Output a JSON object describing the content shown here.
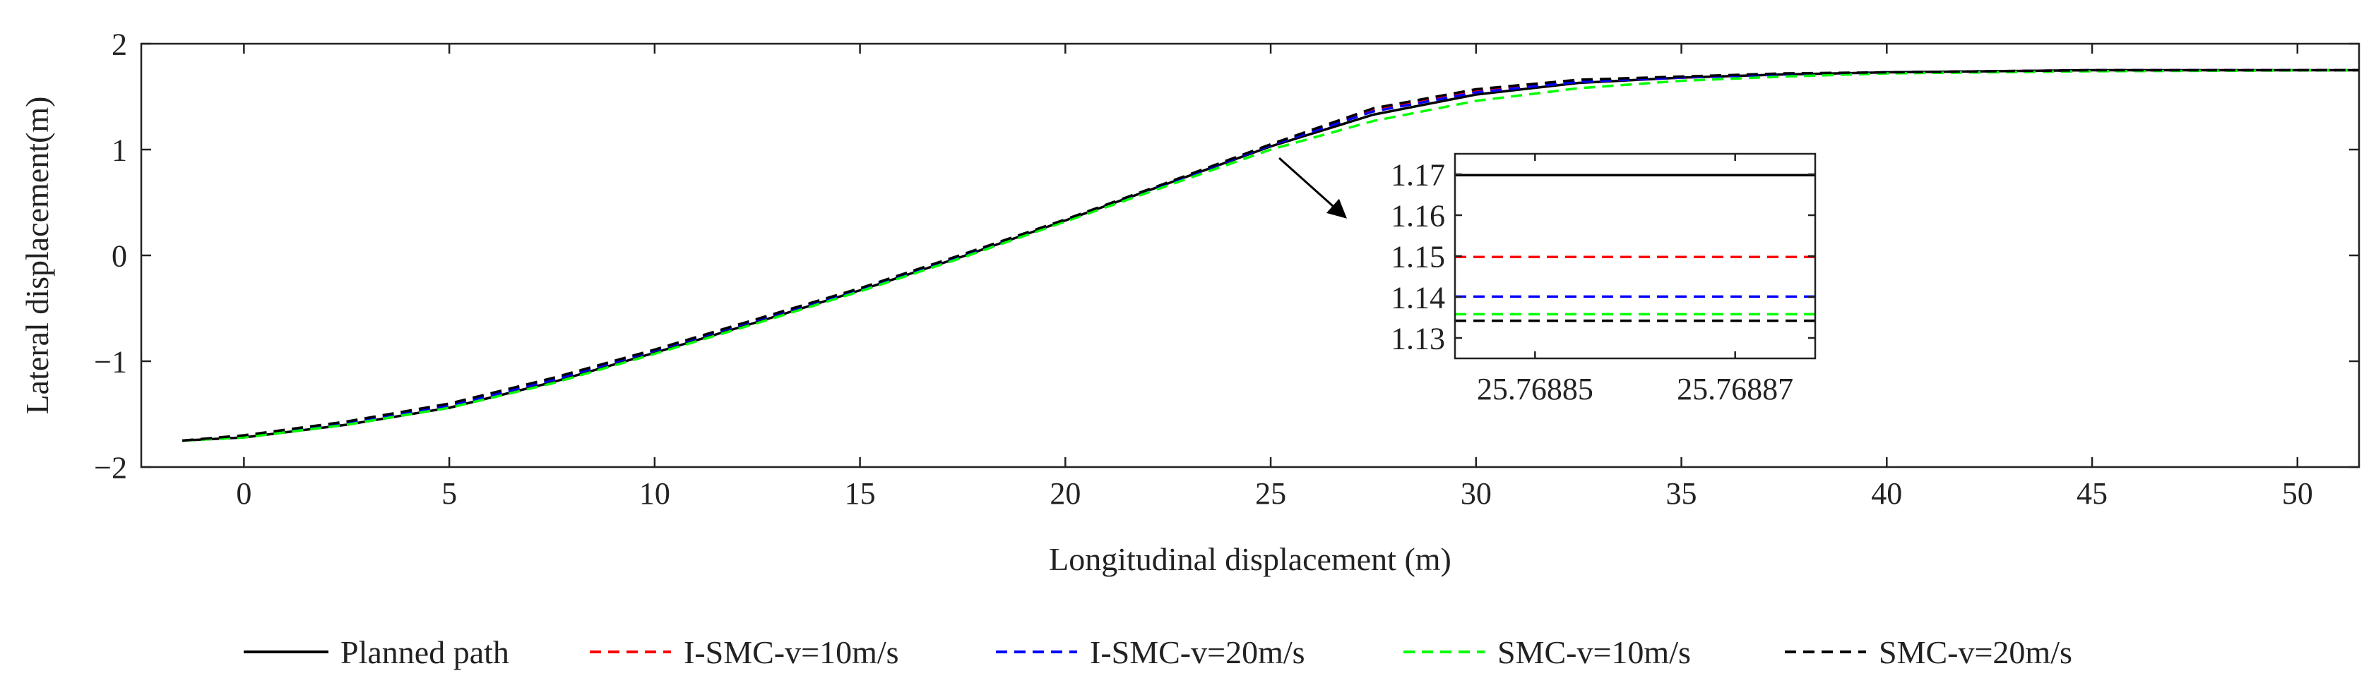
{
  "chart_data": [
    {
      "type": "line",
      "id": "main",
      "title": "",
      "xlabel": "Longitudinal displacement (m)",
      "ylabel": "Lateral displacement(m)",
      "xlim": [
        -2.5,
        51.5
      ],
      "ylim": [
        -2,
        2
      ],
      "xticks": [
        0,
        5,
        10,
        15,
        20,
        25,
        30,
        35,
        40,
        45,
        50
      ],
      "yticks": [
        -2,
        -1,
        0,
        1,
        2
      ],
      "xtick_labels": [
        "0",
        "5",
        "10",
        "15",
        "20",
        "25",
        "30",
        "35",
        "40",
        "45",
        "50"
      ],
      "ytick_labels": [
        "−2",
        "−1",
        "0",
        "1",
        "2"
      ],
      "grid": false,
      "series": [
        {
          "name": "Planned path",
          "color": "#000000",
          "style": "solid",
          "x": [
            -1.5,
            0,
            2.5,
            5,
            7.5,
            10,
            12.5,
            15,
            17.5,
            20,
            22.5,
            25,
            27.5,
            30,
            32.5,
            35,
            37.5,
            40,
            45,
            51.5
          ],
          "y": [
            -1.75,
            -1.72,
            -1.6,
            -1.44,
            -1.2,
            -0.92,
            -0.63,
            -0.33,
            -0.01,
            0.33,
            0.68,
            1.03,
            1.33,
            1.52,
            1.63,
            1.68,
            1.71,
            1.73,
            1.75,
            1.75
          ]
        },
        {
          "name": "I-SMC-v=10m/s",
          "color": "#ff0000",
          "style": "dashed",
          "x": [
            -1.5,
            0,
            2.5,
            5,
            7.5,
            10,
            12.5,
            15,
            17.5,
            20,
            22.5,
            25,
            27.5,
            30,
            32.5,
            35,
            37.5,
            40,
            45,
            51.5
          ],
          "y": [
            -1.75,
            -1.71,
            -1.59,
            -1.42,
            -1.18,
            -0.9,
            -0.61,
            -0.32,
            0.0,
            0.33,
            0.68,
            1.04,
            1.37,
            1.55,
            1.64,
            1.68,
            1.71,
            1.73,
            1.75,
            1.75
          ]
        },
        {
          "name": "I-SMC-v=20m/s",
          "color": "#0000ff",
          "style": "dashed",
          "x": [
            -1.5,
            0,
            2.5,
            5,
            7.5,
            10,
            12.5,
            15,
            17.5,
            20,
            22.5,
            25,
            27.5,
            30,
            32.5,
            35,
            37.5,
            40,
            45,
            51.5
          ],
          "y": [
            -1.75,
            -1.71,
            -1.59,
            -1.42,
            -1.18,
            -0.9,
            -0.61,
            -0.32,
            0.0,
            0.33,
            0.68,
            1.04,
            1.36,
            1.54,
            1.64,
            1.68,
            1.71,
            1.73,
            1.75,
            1.75
          ]
        },
        {
          "name": "SMC-v=10m/s",
          "color": "#00ff00",
          "style": "dashed",
          "x": [
            -1.5,
            0,
            2.5,
            5,
            7.5,
            10,
            12.5,
            15,
            17.5,
            20,
            22.5,
            25,
            27.5,
            30,
            32.5,
            35,
            37.5,
            40,
            45,
            51.5
          ],
          "y": [
            -1.75,
            -1.72,
            -1.6,
            -1.44,
            -1.21,
            -0.93,
            -0.64,
            -0.34,
            -0.02,
            0.32,
            0.66,
            1.0,
            1.27,
            1.46,
            1.58,
            1.65,
            1.69,
            1.72,
            1.74,
            1.75
          ]
        },
        {
          "name": "SMC-v=20m/s",
          "color": "#000000",
          "style": "dashed",
          "x": [
            -1.5,
            0,
            2.5,
            5,
            7.5,
            10,
            12.5,
            15,
            17.5,
            20,
            22.5,
            25,
            27.5,
            30,
            32.5,
            35,
            37.5,
            40,
            45,
            51.5
          ],
          "y": [
            -1.75,
            -1.7,
            -1.57,
            -1.4,
            -1.16,
            -0.89,
            -0.6,
            -0.31,
            0.01,
            0.34,
            0.69,
            1.05,
            1.39,
            1.57,
            1.66,
            1.69,
            1.72,
            1.73,
            1.75,
            1.75
          ]
        }
      ]
    },
    {
      "type": "line",
      "id": "inset",
      "title": "",
      "xlabel": "",
      "ylabel": "",
      "xlim": [
        25.768842,
        25.768878
      ],
      "ylim": [
        1.125,
        1.175
      ],
      "xticks": [
        25.76885,
        25.76887
      ],
      "yticks": [
        1.13,
        1.14,
        1.15,
        1.16,
        1.17
      ],
      "xtick_labels": [
        "25.76885",
        "25.76887"
      ],
      "ytick_labels": [
        "1.13",
        "1.14",
        "1.15",
        "1.16",
        "1.17"
      ],
      "grid": false,
      "series": [
        {
          "name": "Planned path",
          "color": "#000000",
          "style": "solid",
          "x": [
            25.768842,
            25.768878
          ],
          "y": [
            1.1698,
            1.1698
          ]
        },
        {
          "name": "I-SMC-v=10m/s",
          "color": "#ff0000",
          "style": "dashed",
          "x": [
            25.768842,
            25.768878
          ],
          "y": [
            1.1498,
            1.1498
          ]
        },
        {
          "name": "I-SMC-v=20m/s",
          "color": "#0000ff",
          "style": "dashed",
          "x": [
            25.768842,
            25.768878
          ],
          "y": [
            1.1401,
            1.1401
          ]
        },
        {
          "name": "SMC-v=10m/s",
          "color": "#00ff00",
          "style": "dashed",
          "x": [
            25.768842,
            25.768878
          ],
          "y": [
            1.1358,
            1.1358
          ]
        },
        {
          "name": "SMC-v=20m/s",
          "color": "#000000",
          "style": "dashed",
          "x": [
            25.768842,
            25.768878
          ],
          "y": [
            1.1342,
            1.1342
          ]
        }
      ]
    }
  ],
  "legend": {
    "placement": "bottom",
    "entries": [
      {
        "label": "Planned path",
        "color": "#000000",
        "style": "solid"
      },
      {
        "label": "I-SMC-v=10m/s",
        "color": "#ff0000",
        "style": "dashed"
      },
      {
        "label": "I-SMC-v=20m/s",
        "color": "#0000ff",
        "style": "dashed"
      },
      {
        "label": "SMC-v=10m/s",
        "color": "#00ff00",
        "style": "dashed"
      },
      {
        "label": "SMC-v=20m/s",
        "color": "#000000",
        "style": "dashed"
      }
    ]
  },
  "zoom_annotation": {
    "from_x": 25,
    "from_y": 1.0,
    "target": "inset"
  }
}
